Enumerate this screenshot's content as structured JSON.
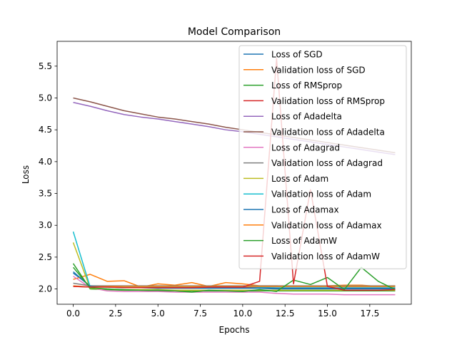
{
  "chart_data": {
    "type": "line",
    "title": "Model Comparison",
    "xlabel": "Epochs",
    "ylabel": "Loss",
    "xlim": [
      -0.95,
      19.95
    ],
    "ylim": [
      1.76,
      5.89
    ],
    "x_ticks": [
      0,
      2.5,
      5,
      7.5,
      10,
      12.5,
      15,
      17.5
    ],
    "x_tick_labels": [
      "0.0",
      "2.5",
      "5.0",
      "7.5",
      "10.0",
      "12.5",
      "15.0",
      "17.5"
    ],
    "y_ticks": [
      2.0,
      2.5,
      3.0,
      3.5,
      4.0,
      4.5,
      5.0,
      5.5
    ],
    "y_tick_labels": [
      "2.0",
      "2.5",
      "3.0",
      "3.5",
      "4.0",
      "4.5",
      "5.0",
      "5.5"
    ],
    "grid": false,
    "legend_position": "top-right",
    "x": [
      0,
      1,
      2,
      3,
      4,
      5,
      6,
      7,
      8,
      9,
      10,
      11,
      12,
      13,
      14,
      15,
      16,
      17,
      18,
      19
    ],
    "series": [
      {
        "name": "Loss of SGD",
        "color": "#1f77b4",
        "values": [
          2.25,
          2.05,
          2.04,
          2.04,
          2.03,
          2.03,
          2.03,
          2.02,
          2.02,
          2.02,
          2.02,
          2.02,
          2.01,
          2.01,
          2.01,
          2.01,
          2.01,
          2.01,
          2.01,
          2.01
        ]
      },
      {
        "name": "Validation loss of SGD",
        "color": "#ff7f0e",
        "values": [
          2.15,
          2.23,
          2.12,
          2.13,
          2.03,
          2.08,
          2.06,
          2.1,
          2.04,
          2.1,
          2.08,
          2.05,
          2.05,
          2.04,
          2.04,
          2.05,
          2.06,
          2.06,
          2.04,
          2.05
        ]
      },
      {
        "name": "Loss of RMSprop",
        "color": "#2ca02c",
        "values": [
          2.4,
          2.0,
          1.99,
          1.98,
          1.98,
          1.97,
          1.97,
          1.97,
          1.97,
          1.97,
          1.97,
          1.97,
          1.97,
          1.97,
          1.97,
          1.97,
          1.97,
          1.97,
          1.97,
          1.97
        ]
      },
      {
        "name": "Validation loss of RMSprop",
        "color": "#d62728",
        "values": [
          2.04,
          2.03,
          2.03,
          2.03,
          2.03,
          2.03,
          2.03,
          2.03,
          2.03,
          2.03,
          2.03,
          2.03,
          2.03,
          2.03,
          2.03,
          2.03,
          2.03,
          2.03,
          2.03,
          2.03
        ]
      },
      {
        "name": "Loss of Adadelta",
        "color": "#9467bd",
        "values": [
          4.93,
          4.87,
          4.8,
          4.74,
          4.7,
          4.67,
          4.63,
          4.59,
          4.55,
          4.5,
          4.47,
          4.43,
          4.39,
          4.35,
          4.31,
          4.27,
          4.23,
          4.19,
          4.15,
          4.11
        ]
      },
      {
        "name": "Validation loss of Adadelta",
        "color": "#8c564b",
        "values": [
          5.0,
          4.94,
          4.87,
          4.8,
          4.75,
          4.7,
          4.67,
          4.63,
          4.59,
          4.54,
          4.5,
          4.46,
          4.42,
          4.38,
          4.34,
          4.3,
          4.26,
          4.22,
          4.18,
          4.14
        ]
      },
      {
        "name": "Loss of Adagrad",
        "color": "#e377c2",
        "values": [
          2.2,
          2.02,
          1.97,
          1.96,
          1.96,
          1.96,
          1.95,
          1.95,
          1.95,
          1.95,
          1.95,
          1.95,
          1.93,
          1.92,
          1.92,
          1.92,
          1.91,
          1.91,
          1.91,
          1.91
        ]
      },
      {
        "name": "Validation loss of Adagrad",
        "color": "#7f7f7f",
        "values": [
          2.09,
          2.05,
          2.05,
          2.05,
          2.05,
          2.05,
          2.05,
          2.05,
          2.05,
          2.05,
          2.05,
          2.05,
          2.05,
          2.05,
          2.05,
          2.05,
          2.05,
          2.05,
          2.05,
          2.05
        ]
      },
      {
        "name": "Loss of Adam",
        "color": "#bcbd22",
        "values": [
          2.73,
          2.01,
          2.0,
          1.99,
          1.99,
          1.99,
          1.98,
          1.98,
          1.98,
          1.98,
          1.98,
          1.98,
          1.98,
          1.98,
          1.98,
          1.98,
          1.98,
          1.98,
          1.98,
          1.98
        ]
      },
      {
        "name": "Validation loss of Adam",
        "color": "#17becf",
        "values": [
          2.9,
          2.03,
          2.04,
          2.03,
          2.04,
          2.03,
          2.03,
          2.04,
          2.04,
          2.04,
          2.04,
          2.03,
          2.03,
          2.03,
          2.03,
          2.03,
          2.03,
          2.03,
          2.03,
          2.03
        ]
      },
      {
        "name": "Loss of Adamax",
        "color": "#1f77b4",
        "values": [
          2.27,
          2.04,
          2.03,
          2.02,
          2.02,
          2.01,
          2.01,
          2.01,
          2.01,
          2.01,
          2.01,
          2.01,
          2.0,
          2.0,
          2.0,
          2.0,
          2.0,
          2.0,
          2.0,
          2.0
        ]
      },
      {
        "name": "Validation loss of Adamax",
        "color": "#ff7f0e",
        "values": [
          2.05,
          2.03,
          2.04,
          2.04,
          2.04,
          2.04,
          2.04,
          2.04,
          2.04,
          2.04,
          2.04,
          2.04,
          2.04,
          2.04,
          2.04,
          2.04,
          2.04,
          2.04,
          2.04,
          2.04
        ]
      },
      {
        "name": "Loss of AdamW",
        "color": "#2ca02c",
        "values": [
          2.34,
          2.02,
          2.0,
          1.99,
          1.98,
          1.98,
          1.97,
          1.95,
          1.98,
          1.97,
          1.96,
          1.99,
          1.96,
          2.14,
          2.07,
          2.18,
          1.99,
          2.34,
          2.12,
          1.99
        ]
      },
      {
        "name": "Validation loss of AdamW",
        "color": "#d62728",
        "values": [
          2.04,
          2.03,
          2.03,
          2.02,
          2.02,
          2.02,
          2.02,
          2.02,
          2.03,
          2.03,
          2.03,
          2.12,
          5.62,
          2.08,
          3.56,
          2.04,
          1.98,
          1.98,
          1.98,
          1.99
        ]
      }
    ]
  }
}
